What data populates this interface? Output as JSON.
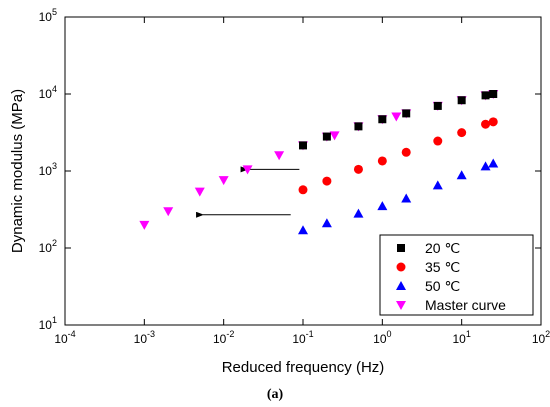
{
  "figure": {
    "panel_label": "(a)"
  },
  "chart_data": {
    "type": "scatter",
    "title": "",
    "xlabel": "Reduced frequency (Hz)",
    "ylabel": "Dynamic modulus (MPa)",
    "xscale": "log",
    "yscale": "log",
    "xlim": [
      0.0001,
      100
    ],
    "ylim": [
      10,
      100000
    ],
    "x_tick_labels": [
      {
        "base": "10",
        "exp": "-4"
      },
      {
        "base": "10",
        "exp": "-3"
      },
      {
        "base": "10",
        "exp": "-2"
      },
      {
        "base": "10",
        "exp": "-1"
      },
      {
        "base": "10",
        "exp": "0"
      },
      {
        "base": "10",
        "exp": "1"
      },
      {
        "base": "10",
        "exp": "2"
      }
    ],
    "y_tick_labels": [
      {
        "base": "10",
        "exp": "1"
      },
      {
        "base": "10",
        "exp": "2"
      },
      {
        "base": "10",
        "exp": "3"
      },
      {
        "base": "10",
        "exp": "4"
      },
      {
        "base": "10",
        "exp": "5"
      }
    ],
    "grid": false,
    "legend_position": "bottom-right",
    "series": [
      {
        "name": "20 ℃",
        "marker": "square",
        "color": "#000000",
        "x": [
          0.1,
          0.2,
          0.5,
          1,
          2,
          5,
          10,
          20,
          25
        ],
        "y": [
          2150,
          2800,
          3800,
          4700,
          5600,
          7000,
          8300,
          9600,
          10000
        ]
      },
      {
        "name": "35 ℃",
        "marker": "circle",
        "color": "#ff0000",
        "x": [
          0.1,
          0.2,
          0.5,
          1,
          2,
          5,
          10,
          20,
          25
        ],
        "y": [
          570,
          740,
          1050,
          1350,
          1750,
          2450,
          3150,
          4050,
          4350
        ]
      },
      {
        "name": "50 ℃",
        "marker": "triangle-up",
        "color": "#0000ff",
        "x": [
          0.1,
          0.2,
          0.5,
          1,
          2,
          5,
          10,
          20,
          25
        ],
        "y": [
          170,
          210,
          280,
          350,
          440,
          650,
          880,
          1150,
          1250
        ]
      },
      {
        "name": "Master curve",
        "marker": "triangle-down",
        "color": "#ff00ff",
        "x": [
          0.001,
          0.002,
          0.005,
          0.01,
          0.02,
          0.05,
          0.1,
          0.2,
          0.25,
          0.5,
          1,
          1.5,
          2,
          5,
          10,
          20,
          25
        ],
        "y": [
          200,
          300,
          540,
          760,
          1050,
          1600,
          2150,
          2800,
          2900,
          3800,
          4700,
          5100,
          5600,
          7000,
          8300,
          9600,
          10000
        ]
      }
    ],
    "annotations": [
      {
        "type": "arrow",
        "from": [
          0.09,
          1050
        ],
        "to": [
          0.02,
          1050
        ]
      },
      {
        "type": "arrow",
        "from": [
          0.07,
          270
        ],
        "to": [
          0.0055,
          270
        ]
      }
    ]
  }
}
